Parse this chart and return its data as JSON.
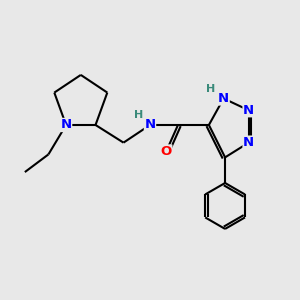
{
  "bg_color": "#e8e8e8",
  "bond_color": "#000000",
  "N_color": "#0000ff",
  "O_color": "#ff0000",
  "H_color": "#3a8a7a",
  "line_width": 1.5,
  "font_size_atom": 9.5,
  "xlim": [
    0,
    10
  ],
  "ylim": [
    0,
    10
  ]
}
